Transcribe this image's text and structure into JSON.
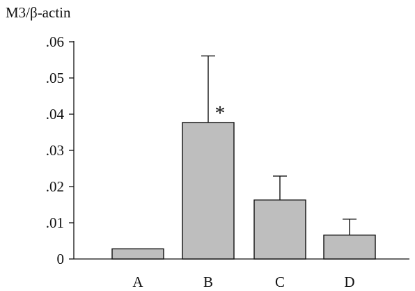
{
  "chart_data": {
    "type": "bar",
    "title": "",
    "xlabel": "",
    "ylabel": "M3/β-actin",
    "categories": [
      "A",
      "B",
      "C",
      "D"
    ],
    "values": [
      0.0028,
      0.0377,
      0.0163,
      0.0066
    ],
    "error_bars": [
      0.0,
      0.0184,
      0.0066,
      0.0044
    ],
    "annotations": [
      {
        "category": "B",
        "text": "*"
      }
    ],
    "ylim": [
      0,
      0.06
    ],
    "yticks": [
      0,
      0.01,
      0.02,
      0.03,
      0.04,
      0.05,
      0.06
    ],
    "ytick_labels": [
      "0",
      ".01",
      ".02",
      ".03",
      ".04",
      ".05",
      ".06"
    ],
    "grid": false,
    "legend": "none",
    "bar_color": "#bebebe",
    "edge_color": "#111111"
  }
}
